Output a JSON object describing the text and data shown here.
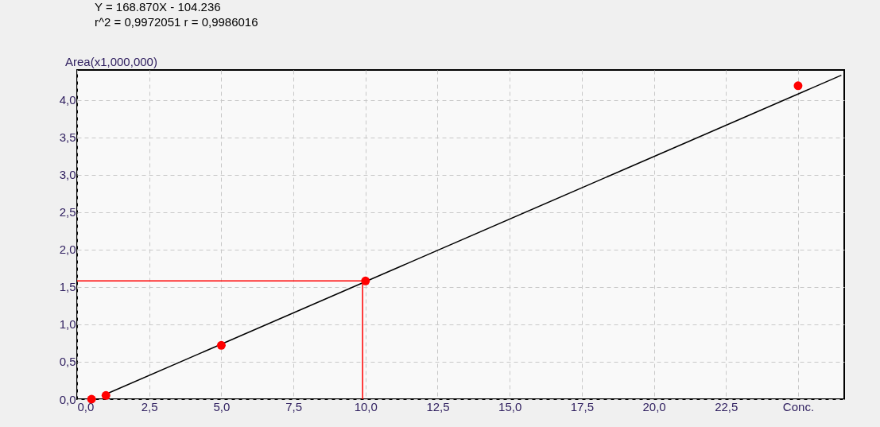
{
  "chart_data": {
    "type": "scatter",
    "annotations": [
      "Y = 168.870X - 104.236",
      "r^2 = 0,9972051  r = 0,9986016"
    ],
    "ylabel": "Area(x1,000,000)",
    "x": [
      0.5,
      1,
      5,
      10,
      25
    ],
    "series": [
      {
        "color": "#ff0000",
        "marker": "circle",
        "values": [
          0.0,
          0.05,
          0.72,
          1.58,
          4.19
        ]
      },
      {
        "type": "line",
        "color": "#000000",
        "x": [
          0.9,
          26.5
        ],
        "values": [
          0.05,
          4.33
        ]
      },
      {
        "type": "line",
        "color": "#ff0000",
        "x": [
          0,
          9.9,
          9.9
        ],
        "values": [
          1.58,
          1.58,
          0
        ]
      }
    ],
    "xlim": [
      0,
      26.6
    ],
    "ylim": [
      0,
      4.4
    ],
    "xticks": [
      {
        "value": 0,
        "label": "0,0"
      },
      {
        "value": 2.5,
        "label": "2,5"
      },
      {
        "value": 5,
        "label": "5,0"
      },
      {
        "value": 7.5,
        "label": "7,5"
      },
      {
        "value": 10,
        "label": "10,0"
      },
      {
        "value": 12.5,
        "label": "12,5"
      },
      {
        "value": 15,
        "label": "15,0"
      },
      {
        "value": 17.5,
        "label": "17,5"
      },
      {
        "value": 20,
        "label": "20,0"
      },
      {
        "value": 22.5,
        "label": "22,5"
      },
      {
        "value": 25,
        "label": "Conc."
      }
    ],
    "yticks": [
      {
        "value": 0,
        "label": "0,0"
      },
      {
        "value": 0.5,
        "label": "0,5"
      },
      {
        "value": 1,
        "label": "1,0"
      },
      {
        "value": 1.5,
        "label": "1,5"
      },
      {
        "value": 2,
        "label": "2,0"
      },
      {
        "value": 2.5,
        "label": "2,5"
      },
      {
        "value": 3,
        "label": "3,0"
      },
      {
        "value": 3.5,
        "label": "3,5"
      },
      {
        "value": 4,
        "label": "4,0"
      }
    ],
    "grid": true
  }
}
